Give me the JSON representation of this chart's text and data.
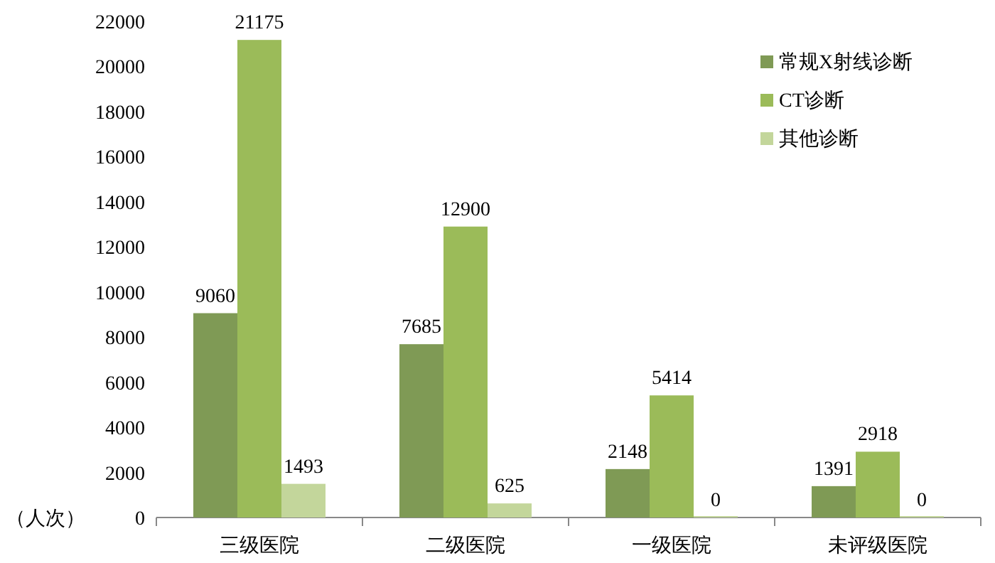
{
  "chart_data": {
    "type": "bar",
    "categories": [
      "三级医院",
      "二级医院",
      "一级医院",
      "未评级医院"
    ],
    "series": [
      {
        "name": "常规X射线诊断",
        "color": "#7f9a55",
        "values": [
          9060,
          7685,
          2148,
          1391
        ]
      },
      {
        "name": "CT诊断",
        "color": "#9bbb59",
        "values": [
          21175,
          12900,
          5414,
          2918
        ]
      },
      {
        "name": "其他诊断",
        "color": "#c3d69b",
        "values": [
          1493,
          625,
          0,
          0
        ]
      }
    ],
    "ylabel": "（人次）",
    "ylim": [
      0,
      22000
    ],
    "yticks": [
      0,
      2000,
      4000,
      6000,
      8000,
      10000,
      12000,
      14000,
      16000,
      18000,
      20000,
      22000
    ],
    "legend": "right",
    "data_labels": true,
    "grid": false
  }
}
